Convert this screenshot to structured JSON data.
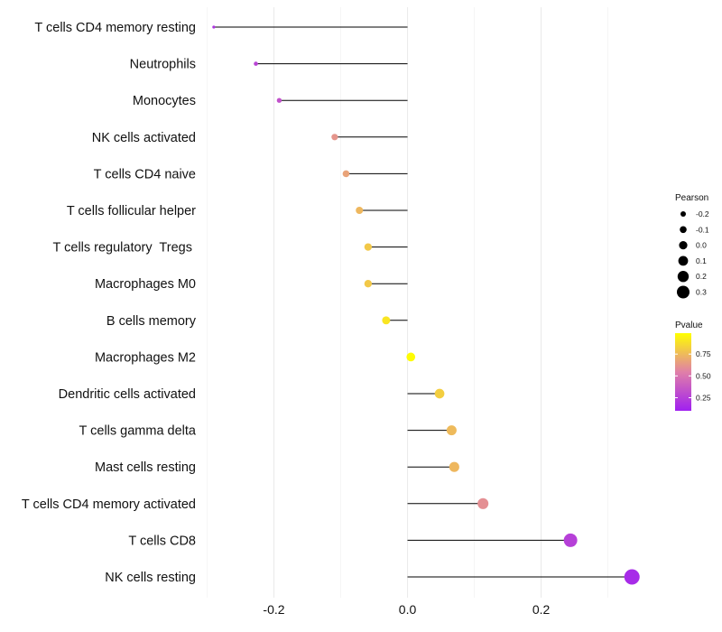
{
  "chart_data": {
    "type": "lollipop",
    "categories": [
      "T cells CD4 memory resting",
      "Neutrophils",
      "Monocytes",
      "NK cells activated",
      "T cells CD4 naive",
      "T cells follicular helper",
      "T cells regulatory  Tregs ",
      "Macrophages M0",
      "B cells memory",
      "Macrophages M2",
      "Dendritic cells activated",
      "T cells gamma delta",
      "Mast cells resting",
      "T cells CD4 memory activated",
      "T cells CD8",
      "NK cells resting"
    ],
    "values": [
      -0.29,
      -0.227,
      -0.192,
      -0.109,
      -0.092,
      -0.072,
      -0.059,
      -0.059,
      -0.032,
      0.005,
      0.048,
      0.066,
      0.07,
      0.113,
      0.244,
      0.336
    ],
    "pvalues": [
      0.2,
      0.27,
      0.33,
      0.62,
      0.67,
      0.74,
      0.8,
      0.8,
      0.9,
      0.98,
      0.82,
      0.75,
      0.74,
      0.6,
      0.25,
      0.15
    ],
    "xlim": [
      -0.302,
      0.36
    ],
    "x_ticks": [
      -0.2,
      0.0,
      0.2
    ],
    "x_tick_labels": [
      "-0.2",
      "0.0",
      "0.2"
    ],
    "xlabel": "",
    "ylabel": "",
    "legend_size": {
      "title": "Pearson",
      "breaks": [
        -0.2,
        -0.1,
        0.0,
        0.1,
        0.2,
        0.3
      ],
      "labels": [
        "-0.2",
        "-0.1",
        "0.0",
        "0.1",
        "0.2",
        "0.3"
      ]
    },
    "legend_color": {
      "title": "Pvalue",
      "breaks": [
        0.25,
        0.5,
        0.75
      ],
      "labels": [
        "0.25",
        "0.50",
        "0.75"
      ],
      "range": [
        0.1,
        0.99
      ],
      "low_color": "#A020F0",
      "high_color": "#FFFF00"
    },
    "legend_position": "right",
    "grid": true
  }
}
